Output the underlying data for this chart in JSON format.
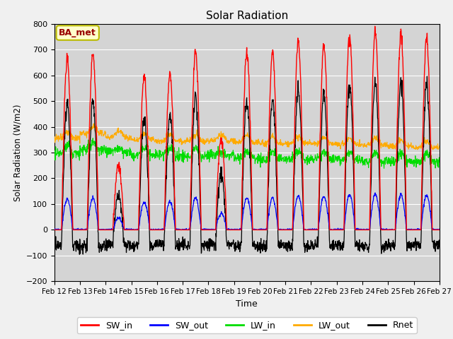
{
  "title": "Solar Radiation",
  "xlabel": "Time",
  "ylabel": "Solar Radiation (W/m2)",
  "annotation": "BA_met",
  "ylim": [
    -200,
    800
  ],
  "x_tick_labels": [
    "Feb 12",
    "Feb 13",
    "Feb 14",
    "Feb 15",
    "Feb 16",
    "Feb 17",
    "Feb 18",
    "Feb 19",
    "Feb 20",
    "Feb 21",
    "Feb 22",
    "Feb 23",
    "Feb 24",
    "Feb 25",
    "Feb 26",
    "Feb 27"
  ],
  "colors": {
    "SW_in": "#ff0000",
    "SW_out": "#0000ff",
    "LW_in": "#00dd00",
    "LW_out": "#ffaa00",
    "Rnet": "#000000"
  },
  "SW_in_peaks": [
    660,
    690,
    250,
    600,
    605,
    690,
    350,
    690,
    690,
    730,
    715,
    750,
    770,
    760,
    745
  ],
  "SW_out_ratio": 0.18,
  "LW_in_base": 295,
  "LW_out_base": 355,
  "n_days": 15,
  "pts_per_day": 96
}
